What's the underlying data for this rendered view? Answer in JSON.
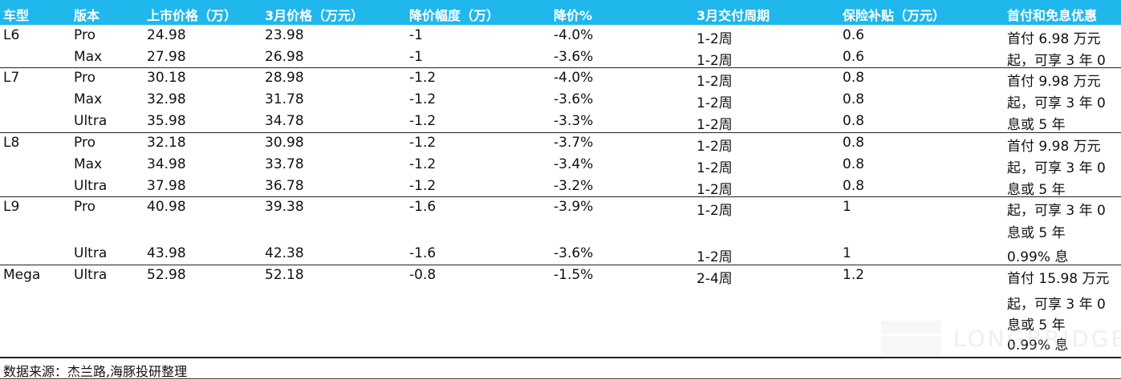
{
  "headers": [
    "车型",
    "版本",
    "上市价格（万）",
    "3月价格（万元）",
    "降价幅度（万）",
    "降价%",
    "3月交付周期",
    "保险补贴（万元）",
    "首付和免息优惠"
  ],
  "rows": [
    [
      "L6",
      "Pro",
      "24.98",
      "23.98",
      "-1",
      "-4.0%",
      "1-2周",
      "0.6",
      "首付 6.98 万元"
    ],
    [
      "",
      "Max",
      "27.98",
      "26.98",
      "-1",
      "-3.6%",
      "1-2周",
      "0.6",
      "起，可享 3 年 0"
    ],
    [
      "L7",
      "Pro",
      "30.18",
      "28.98",
      "-1.2",
      "-4.0%",
      "1-2周",
      "0.8",
      "首付 9.98 万元"
    ],
    [
      "",
      "Max",
      "32.98",
      "31.78",
      "-1.2",
      "-3.6%",
      "1-2周",
      "0.8",
      "起，可享 3 年 0"
    ],
    [
      "",
      "Ultra",
      "35.98",
      "34.78",
      "-1.2",
      "-3.3%",
      "1-2周",
      "0.8",
      "息或 5 年"
    ],
    [
      "L8",
      "Pro",
      "32.18",
      "30.98",
      "-1.2",
      "-3.7%",
      "1-2周",
      "0.8",
      "首付 9.98 万元"
    ],
    [
      "",
      "Max",
      "34.98",
      "33.78",
      "-1.2",
      "-3.4%",
      "1-2周",
      "0.8",
      "起，可享 3 年 0"
    ],
    [
      "",
      "Ultra",
      "37.98",
      "36.78",
      "-1.2",
      "-3.2%",
      "1-2周",
      "0.8",
      "息或 5 年"
    ],
    [
      "L9",
      "Pro",
      "40.98",
      "39.38",
      "-1.6",
      "-3.9%",
      "1-2周",
      "1",
      "起，可享 3 年 0"
    ],
    [
      "",
      "",
      "",
      "",
      "",
      "",
      "",
      "",
      "息或 5 年"
    ],
    [
      "",
      "Ultra",
      "43.98",
      "42.38",
      "-1.6",
      "-3.6%",
      "1-2周",
      "1",
      "0.99% 息"
    ],
    [
      "Mega",
      "Ultra",
      "52.98",
      "52.18",
      "-0.8",
      "-1.5%",
      "2-4周",
      "1.2",
      "首付 15.98 万元"
    ]
  ],
  "mega_note": [
    "起，可享 3 年 0",
    "息或 5 年",
    "0.99% 息"
  ],
  "source": "数据来源：杰兰路,海豚投研整理",
  "watermark": "LONGBRIDGE",
  "colors": {
    "header_bg": "#1fb7ec",
    "header_text": "#ffffff"
  }
}
